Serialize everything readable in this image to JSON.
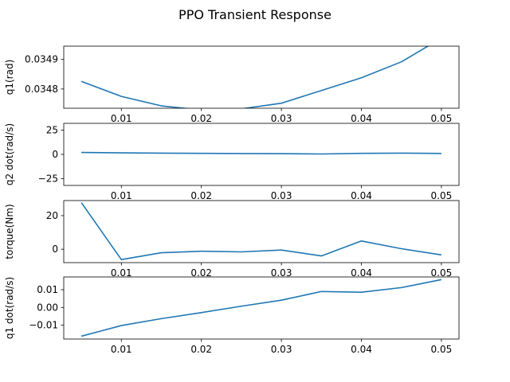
{
  "figure": {
    "title": "PPO Transient Response",
    "line_color": "#1f77b4"
  },
  "chart_data": [
    {
      "type": "line",
      "ylabel": "q1(rad)",
      "xlim": [
        0.0028,
        0.0522
      ],
      "ylim": [
        0.034735,
        0.034945
      ],
      "xticks": [
        0.01,
        0.02,
        0.03,
        0.04,
        0.05
      ],
      "xtick_labels": [
        "0.01",
        "0.02",
        "0.03",
        "0.04",
        "0.05"
      ],
      "yticks": [
        0.0348,
        0.0349
      ],
      "ytick_labels": [
        "0.0348",
        "0.0349"
      ],
      "series": [
        {
          "x": [
            0.005,
            0.01,
            0.015,
            0.02,
            0.025,
            0.03,
            0.035,
            0.04,
            0.045,
            0.05
          ],
          "y": [
            0.034826,
            0.034775,
            0.034743,
            0.034729,
            0.034733,
            0.034752,
            0.034795,
            0.034838,
            0.034892,
            0.034972
          ]
        }
      ]
    },
    {
      "type": "line",
      "ylabel": "q2 dot(rad/s)",
      "xlim": [
        0.0028,
        0.0522
      ],
      "ylim": [
        -32,
        32
      ],
      "xticks": [
        0.01,
        0.02,
        0.03,
        0.04,
        0.05
      ],
      "xtick_labels": [
        "0.01",
        "0.02",
        "0.03",
        "0.04",
        "0.05"
      ],
      "yticks": [
        -25,
        0,
        25
      ],
      "ytick_labels": [
        "−25",
        "0",
        "25"
      ],
      "series": [
        {
          "x": [
            0.005,
            0.01,
            0.015,
            0.02,
            0.025,
            0.03,
            0.035,
            0.04,
            0.045,
            0.05
          ],
          "y": [
            2.0,
            1.6,
            1.3,
            1.1,
            0.9,
            0.8,
            0.4,
            1.1,
            1.3,
            1.0
          ]
        }
      ]
    },
    {
      "type": "line",
      "ylabel": "torque(Nm)",
      "xlim": [
        0.0028,
        0.0522
      ],
      "ylim": [
        -8,
        29
      ],
      "xticks": [
        0.01,
        0.02,
        0.03,
        0.04,
        0.05
      ],
      "xtick_labels": [
        "0.01",
        "0.02",
        "0.03",
        "0.04",
        "0.05"
      ],
      "yticks": [
        0,
        20
      ],
      "ytick_labels": [
        "0",
        "20"
      ],
      "series": [
        {
          "x": [
            0.005,
            0.01,
            0.015,
            0.02,
            0.025,
            0.03,
            0.035,
            0.04,
            0.045,
            0.05
          ],
          "y": [
            27.8,
            -6.2,
            -2.1,
            -1.2,
            -1.6,
            -0.5,
            -4.0,
            4.9,
            0.3,
            -3.4
          ]
        }
      ]
    },
    {
      "type": "line",
      "ylabel": "q1 dot(rad/s)",
      "xlim": [
        0.0028,
        0.0522
      ],
      "ylim": [
        -0.0178,
        0.0172
      ],
      "xticks": [
        0.01,
        0.02,
        0.03,
        0.04,
        0.05
      ],
      "xtick_labels": [
        "0.01",
        "0.02",
        "0.03",
        "0.04",
        "0.05"
      ],
      "yticks": [
        -0.01,
        0.0,
        0.01
      ],
      "ytick_labels": [
        "−0.01",
        "0.00",
        "0.01"
      ],
      "series": [
        {
          "x": [
            0.005,
            0.01,
            0.015,
            0.02,
            0.025,
            0.03,
            0.035,
            0.04,
            0.045,
            0.05
          ],
          "y": [
            -0.0162,
            -0.0102,
            -0.0063,
            -0.0029,
            0.0007,
            0.0041,
            0.009,
            0.0086,
            0.0112,
            0.0157
          ]
        }
      ]
    }
  ]
}
